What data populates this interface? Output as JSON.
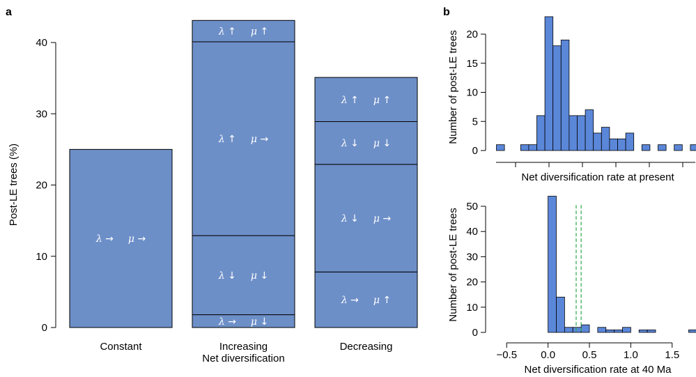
{
  "chart_data": [
    {
      "panel": "a",
      "type": "bar",
      "stacked": true,
      "ylabel": "Post-LE trees (%)",
      "ylim": [
        0,
        43
      ],
      "yticks": [
        0,
        10,
        20,
        30,
        40
      ],
      "categories": [
        "Constant",
        "Increasing\nNet diversification",
        "Decreasing"
      ],
      "category_labels": [
        [
          "Constant"
        ],
        [
          "Increasing",
          "Net diversification"
        ],
        [
          "Decreasing"
        ]
      ],
      "bars": [
        {
          "category": "Constant",
          "segments": [
            {
              "lambda": "→",
              "mu": "→",
              "from": 0,
              "to": 25
            }
          ]
        },
        {
          "category": "Increasing\nNet diversification",
          "segments": [
            {
              "lambda": "→",
              "mu": "↓",
              "from": 0,
              "to": 1.8
            },
            {
              "lambda": "↓",
              "mu": "↓",
              "from": 1.8,
              "to": 12.9
            },
            {
              "lambda": "↑",
              "mu": "→",
              "from": 12.9,
              "to": 40.1
            },
            {
              "lambda": "↑",
              "mu": "↑",
              "from": 40.1,
              "to": 43.1
            }
          ]
        },
        {
          "category": "Decreasing",
          "segments": [
            {
              "lambda": "→",
              "mu": "↑",
              "from": 0,
              "to": 7.8
            },
            {
              "lambda": "↓",
              "mu": "→",
              "from": 7.8,
              "to": 22.9
            },
            {
              "lambda": "↓",
              "mu": "↓",
              "from": 22.9,
              "to": 28.9
            },
            {
              "lambda": "↑",
              "mu": "↑",
              "from": 28.9,
              "to": 35.1
            }
          ]
        }
      ],
      "symbols": {
        "lambda": "λ",
        "mu": "μ"
      },
      "color": "#6d8fc8"
    },
    {
      "panel": "b",
      "type": "bar",
      "subtype": "histogram",
      "xlabel": "Net diversification rate at present",
      "ylabel": "Number of post-LE trees",
      "ylim": [
        0,
        24
      ],
      "yticks": [
        0,
        5,
        10,
        15,
        20
      ],
      "counts": [
        1,
        0,
        0,
        1,
        1,
        6,
        23,
        18,
        19,
        6,
        6,
        7,
        3,
        4,
        2,
        2,
        3,
        0,
        1,
        0,
        1,
        0,
        1,
        0,
        1
      ],
      "color": "#5b87d9"
    },
    {
      "panel": "b",
      "type": "bar",
      "subtype": "histogram",
      "xlabel": "Net diversification rate at 40 Ma",
      "ylabel": "Number of post-LE trees",
      "xlim": [
        -0.62,
        1.78
      ],
      "ylim": [
        0,
        54
      ],
      "yticks": [
        0,
        10,
        20,
        30,
        40,
        50
      ],
      "xticks": [
        -0.5,
        0.0,
        0.5,
        1.0,
        1.5
      ],
      "xtick_labels": [
        "−0.5",
        "0.0",
        "0.5",
        "1.0",
        "1.5"
      ],
      "bin_start": 0.0,
      "bin_width": 0.1,
      "counts": [
        54,
        14,
        2,
        2,
        3,
        0,
        2,
        1,
        1,
        2,
        0,
        1,
        1,
        0,
        0,
        0,
        0,
        1
      ],
      "reference_lines": [
        0.34,
        0.4
      ],
      "reference_color": "#2aa84a",
      "color": "#5b87d9"
    }
  ],
  "panel_labels": {
    "a": "a",
    "b": "b"
  }
}
